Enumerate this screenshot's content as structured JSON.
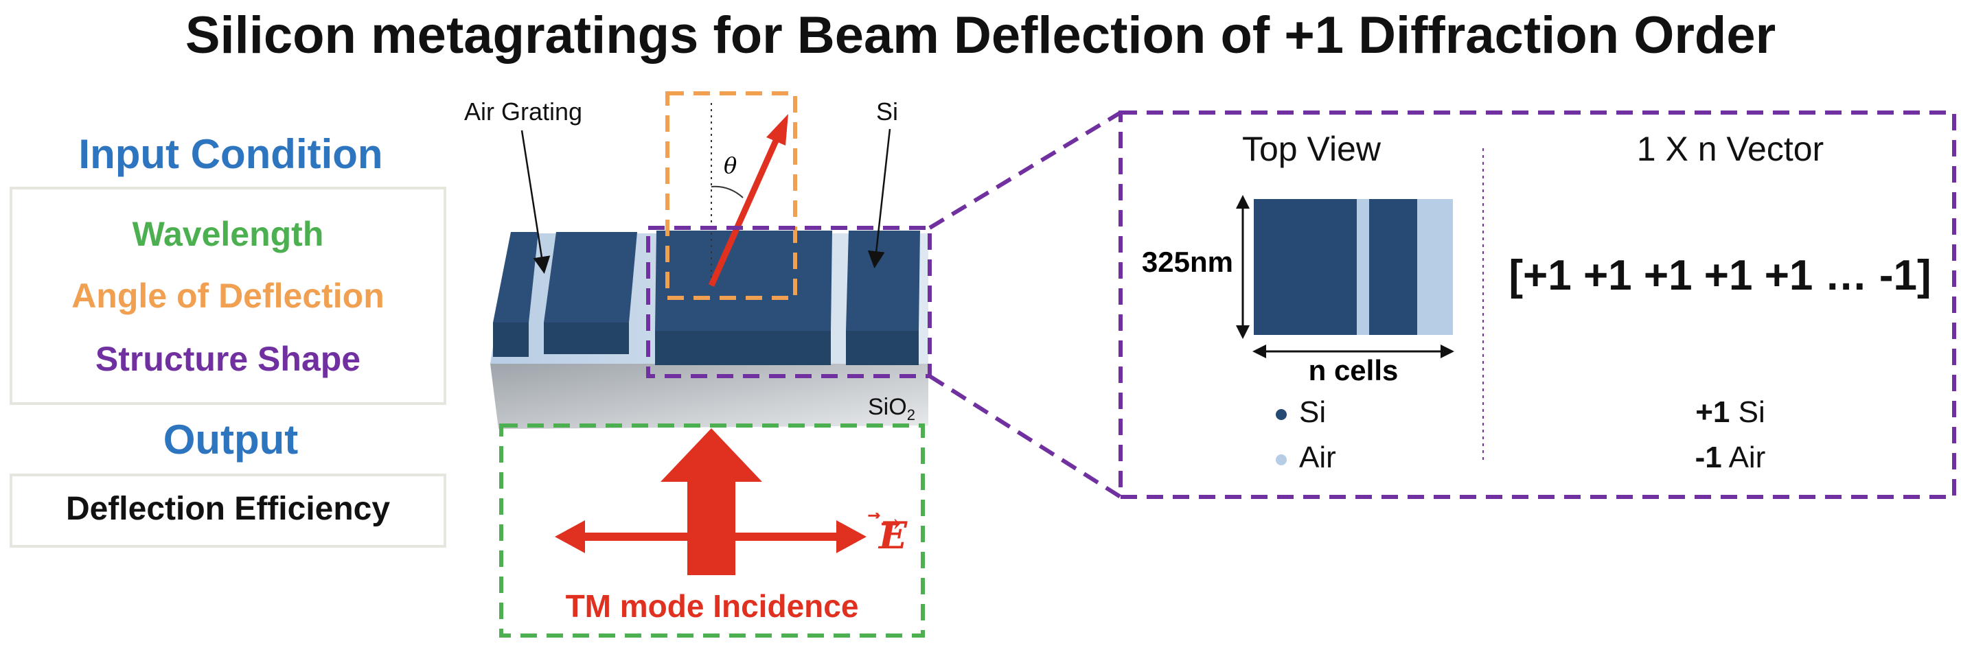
{
  "title": "Silicon metagratings for Beam Deflection of +1 Diffraction Order",
  "input_condition": {
    "heading": "Input Condition",
    "items": [
      {
        "label": "Wavelength",
        "color": "#4caf50"
      },
      {
        "label": "Angle of Deflection",
        "color": "#f0a050"
      },
      {
        "label": "Structure Shape",
        "color": "#7030a0"
      }
    ]
  },
  "output": {
    "heading": "Output",
    "value": "Deflection Efficiency"
  },
  "structure": {
    "air_grating_label": "Air Grating",
    "si_label": "Si",
    "substrate_label": "SiO",
    "substrate_sub": "2",
    "theta": "θ",
    "e_field": "E",
    "incidence_label": "TM mode Incidence"
  },
  "zoom_panel": {
    "top_view_title": "Top View",
    "vector_title": "1 X n Vector",
    "height_label": "325nm",
    "width_label": "n cells",
    "vector_value": "[+1 +1 +1 +1 +1 … -1]",
    "legend": [
      {
        "bullet_color": "#264a73",
        "label": "Si"
      },
      {
        "bullet_color": "#b7cde6",
        "label": "Air"
      }
    ],
    "encoding": [
      {
        "code": "+1",
        "label": "Si"
      },
      {
        "code": "-1",
        "label": "Air"
      }
    ]
  },
  "colors": {
    "si": "#264a73",
    "air": "#b7cde6",
    "orange_dash": "#f0a050",
    "green_dash": "#4caf50",
    "purple_dash": "#7030a0",
    "red": "#e03020"
  }
}
